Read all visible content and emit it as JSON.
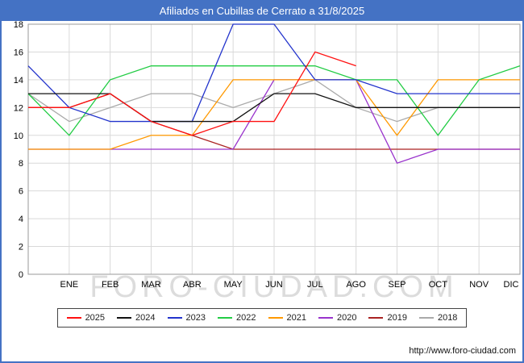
{
  "page": {
    "title": "Afiliados en Cubillas de Cerrato a 31/8/2025",
    "watermark": "FORO-CIUDAD.COM",
    "source_url": "http://www.foro-ciudad.com",
    "colors": {
      "title_bar": "#4472c4",
      "border": "#4472c4",
      "grid": "#d9d9d9",
      "plot_border": "#999999",
      "watermark": "#dcdcdc"
    }
  },
  "chart_data": {
    "type": "line",
    "title": "Afiliados en Cubillas de Cerrato a 31/8/2025",
    "x_labels": [
      "",
      "ENE",
      "FEB",
      "MAR",
      "ABR",
      "MAY",
      "JUN",
      "JUL",
      "AGO",
      "SEP",
      "OCT",
      "NOV",
      "DIC"
    ],
    "ylim": [
      0,
      18
    ],
    "y_ticks": [
      0,
      2,
      4,
      6,
      8,
      10,
      12,
      14,
      16,
      18
    ],
    "grid": true,
    "legend_position": "bottom",
    "series": [
      {
        "name": "2025",
        "color": "#ff1010",
        "values": [
          12,
          12,
          13,
          11,
          10,
          11,
          11,
          16,
          15,
          null,
          null,
          null,
          null
        ]
      },
      {
        "name": "2024",
        "color": "#111111",
        "values": [
          13,
          13,
          13,
          11,
          11,
          11,
          13,
          13,
          12,
          12,
          12,
          12,
          12
        ]
      },
      {
        "name": "2023",
        "color": "#2233cc",
        "values": [
          15,
          12,
          11,
          11,
          11,
          18,
          18,
          14,
          14,
          13,
          13,
          13,
          13
        ]
      },
      {
        "name": "2022",
        "color": "#22cc44",
        "values": [
          13,
          10,
          14,
          15,
          15,
          15,
          15,
          15,
          14,
          14,
          10,
          14,
          15
        ]
      },
      {
        "name": "2021",
        "color": "#ff9900",
        "values": [
          9,
          9,
          9,
          10,
          10,
          14,
          14,
          14,
          14,
          10,
          14,
          14,
          14
        ]
      },
      {
        "name": "2020",
        "color": "#9933cc",
        "values": [
          9,
          9,
          9,
          9,
          9,
          9,
          14,
          14,
          14,
          8,
          9,
          9,
          9
        ]
      },
      {
        "name": "2019",
        "color": "#aa2222",
        "values": [
          12,
          12,
          13,
          11,
          10,
          9,
          9,
          9,
          9,
          9,
          9,
          9,
          9
        ]
      },
      {
        "name": "2018",
        "color": "#aaaaaa",
        "values": [
          13,
          11,
          12,
          13,
          13,
          12,
          13,
          14,
          12,
          11,
          12,
          12,
          12
        ]
      }
    ]
  }
}
